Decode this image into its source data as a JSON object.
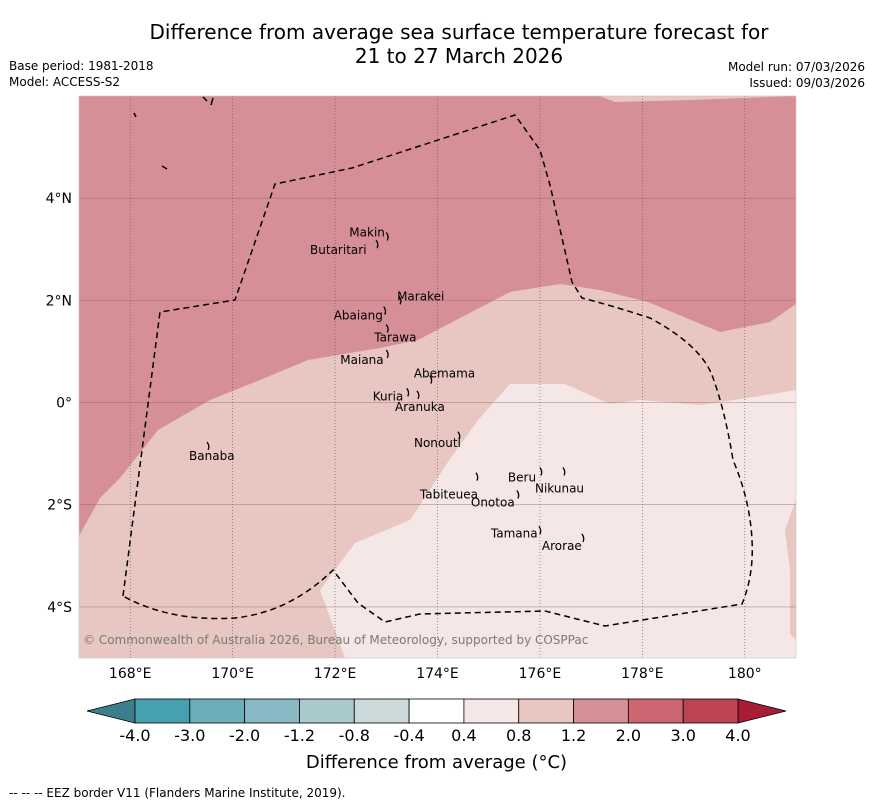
{
  "title": {
    "line1": "Difference from average sea surface temperature forecast for",
    "line2": "21 to 27 March 2026"
  },
  "meta": {
    "base_period": "Base period: 1981-2018",
    "model": "Model: ACCESS-S2",
    "model_run": "Model run: 07/03/2026",
    "issued": "Issued: 09/03/2026"
  },
  "axes": {
    "x_ticks": [
      {
        "value": 168,
        "label": "168°E"
      },
      {
        "value": 170,
        "label": "170°E"
      },
      {
        "value": 172,
        "label": "172°E"
      },
      {
        "value": 174,
        "label": "174°E"
      },
      {
        "value": 176,
        "label": "176°E"
      },
      {
        "value": 178,
        "label": "178°E"
      },
      {
        "value": 180,
        "label": "180°"
      }
    ],
    "y_ticks": [
      {
        "value": 4,
        "label": "4°N"
      },
      {
        "value": 2,
        "label": "2°N"
      },
      {
        "value": 0,
        "label": "0°"
      },
      {
        "value": -2,
        "label": "2°S"
      },
      {
        "value": -4,
        "label": "4°S"
      }
    ],
    "lon_range": [
      167,
      181
    ],
    "lat_range": [
      -5,
      6
    ]
  },
  "islands": [
    {
      "name": "Makin",
      "lon": 173.0,
      "lat": 3.25
    },
    {
      "name": "Butaritari",
      "lon": 172.8,
      "lat": 3.1
    },
    {
      "name": "Marakei",
      "lon": 173.25,
      "lat": 2.0
    },
    {
      "name": "Abaiang",
      "lon": 172.95,
      "lat": 1.8
    },
    {
      "name": "Tarawa",
      "lon": 173.0,
      "lat": 1.45
    },
    {
      "name": "Maiana",
      "lon": 173.0,
      "lat": 0.95
    },
    {
      "name": "Abemama",
      "lon": 173.85,
      "lat": 0.45
    },
    {
      "name": "Kuria",
      "lon": 173.4,
      "lat": 0.2
    },
    {
      "name": "Aranuka",
      "lon": 173.6,
      "lat": 0.15
    },
    {
      "name": "Nonouti",
      "lon": 174.4,
      "lat": -0.65
    },
    {
      "name": "Banaba",
      "lon": 169.5,
      "lat": -0.85
    },
    {
      "name": "Beru",
      "lon": 176.0,
      "lat": -1.35
    },
    {
      "name": "Nikunau",
      "lon": 176.45,
      "lat": -1.35
    },
    {
      "name": "Tabiteuea",
      "lon": 174.75,
      "lat": -1.45
    },
    {
      "name": "Onotoa",
      "lon": 175.55,
      "lat": -1.8
    },
    {
      "name": "Tamana",
      "lon": 175.98,
      "lat": -2.5
    },
    {
      "name": "Arorae",
      "lon": 176.82,
      "lat": -2.65
    }
  ],
  "credit": "© Commonwealth of Australia 2026, Bureau of Meteorology, supported by COSPPac",
  "colorbar": {
    "title": "Difference from average (°C)",
    "boundaries": [
      "-4.0",
      "-3.0",
      "-2.0",
      "-1.2",
      "-0.8",
      "-0.4",
      "0.4",
      "0.8",
      "1.2",
      "2.0",
      "3.0",
      "4.0"
    ],
    "colors": {
      "under": "#3d7e8c",
      "bins": [
        "#47a0b0",
        "#6aaebb",
        "#88b8c3",
        "#a9c9cd",
        "#cbd9da",
        "#ffffff",
        "#f5e7e5",
        "#e8c6c1",
        "#d68f96",
        "#cc6673",
        "#bd4452"
      ],
      "over": "#a81c38"
    }
  },
  "fills": {
    "warm_high": "#d68f96",
    "warm_mid": "#e8c6c1",
    "warm_low": "#f5e7e5"
  },
  "footnote": "--  --  -- EEZ border V11 (Flanders Marine Institute, 2019)."
}
